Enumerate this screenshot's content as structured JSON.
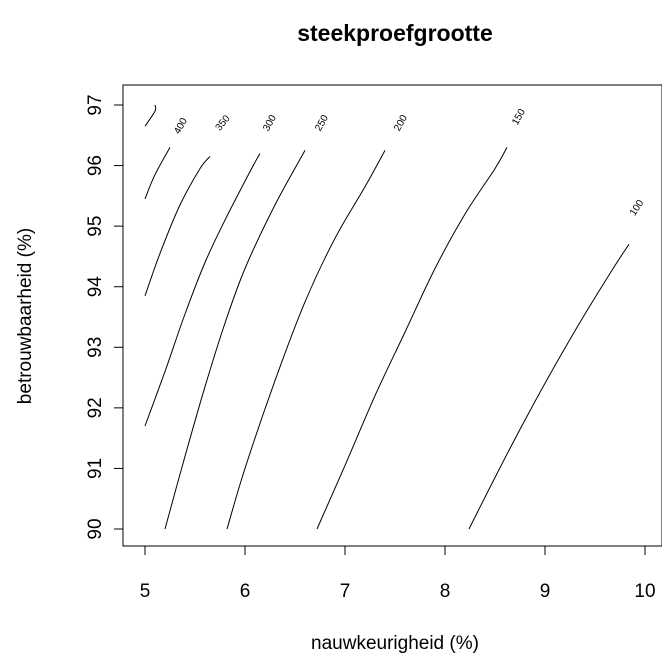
{
  "chart_data": {
    "type": "contour",
    "title": "steekproefgrootte",
    "xlabel": "nauwkeurigheid (%)",
    "ylabel": "betrouwbaarheid (%)",
    "xlim": [
      5,
      10
    ],
    "ylim": [
      90,
      97
    ],
    "x_ticks": [
      5,
      6,
      7,
      8,
      9,
      10
    ],
    "y_ticks": [
      90,
      91,
      92,
      93,
      94,
      95,
      96,
      97
    ],
    "levels": [
      {
        "label": "100",
        "points": [
          [
            8.24,
            90
          ],
          [
            8.5,
            90.85
          ],
          [
            8.8,
            91.8
          ],
          [
            9.1,
            92.7
          ],
          [
            9.4,
            93.55
          ],
          [
            9.7,
            94.35
          ],
          [
            9.84,
            94.7
          ]
        ],
        "label_at": [
          9.92,
          95.3
        ]
      },
      {
        "label": "150",
        "points": [
          [
            6.72,
            90
          ],
          [
            7.0,
            91.05
          ],
          [
            7.3,
            92.2
          ],
          [
            7.6,
            93.25
          ],
          [
            7.9,
            94.3
          ],
          [
            8.2,
            95.2
          ],
          [
            8.5,
            95.95
          ],
          [
            8.62,
            96.3
          ]
        ],
        "label_at": [
          8.74,
          96.8
        ]
      },
      {
        "label": "200",
        "points": [
          [
            5.82,
            90
          ],
          [
            6.0,
            91.0
          ],
          [
            6.3,
            92.45
          ],
          [
            6.6,
            93.75
          ],
          [
            6.9,
            94.8
          ],
          [
            7.2,
            95.65
          ],
          [
            7.4,
            96.25
          ]
        ],
        "label_at": [
          7.56,
          96.7
        ]
      },
      {
        "label": "250",
        "points": [
          [
            5.2,
            90
          ],
          [
            5.4,
            91.2
          ],
          [
            5.6,
            92.35
          ],
          [
            5.8,
            93.4
          ],
          [
            6.0,
            94.3
          ],
          [
            6.3,
            95.35
          ],
          [
            6.6,
            96.25
          ]
        ],
        "label_at": [
          6.77,
          96.7
        ]
      },
      {
        "label": "300",
        "points": [
          [
            5.0,
            91.7
          ],
          [
            5.2,
            92.6
          ],
          [
            5.4,
            93.55
          ],
          [
            5.6,
            94.4
          ],
          [
            5.8,
            95.1
          ],
          [
            6.05,
            95.9
          ],
          [
            6.15,
            96.2
          ]
        ],
        "label_at": [
          6.25,
          96.7
        ]
      },
      {
        "label": "350",
        "points": [
          [
            5.0,
            93.85
          ],
          [
            5.15,
            94.55
          ],
          [
            5.35,
            95.35
          ],
          [
            5.55,
            95.95
          ],
          [
            5.65,
            96.15
          ]
        ],
        "label_at": [
          5.78,
          96.7
        ]
      },
      {
        "label": "400",
        "points": [
          [
            5.0,
            95.45
          ],
          [
            5.1,
            95.85
          ],
          [
            5.25,
            96.3
          ]
        ],
        "label_at": [
          5.36,
          96.65
        ]
      },
      {
        "label": "",
        "points": [
          [
            5.0,
            96.65
          ],
          [
            5.1,
            96.9
          ],
          [
            5.1,
            97.0
          ]
        ],
        "label_at": null
      }
    ]
  }
}
